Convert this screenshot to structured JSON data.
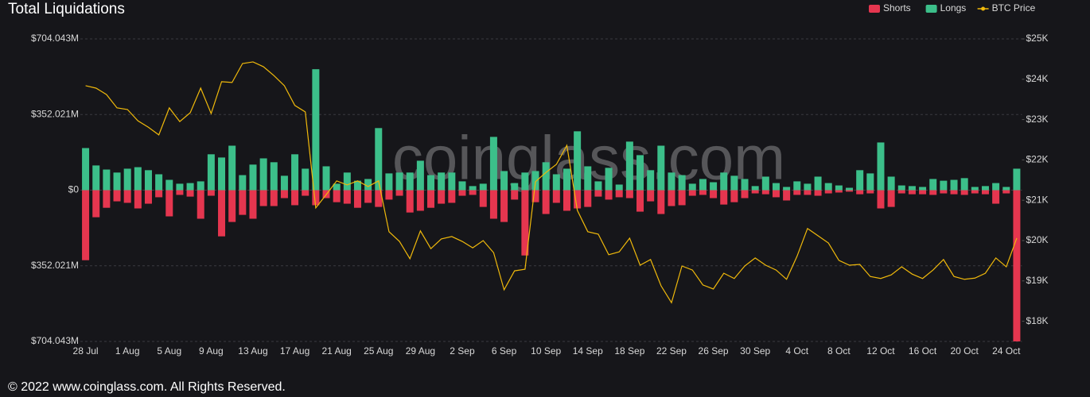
{
  "chart_data": {
    "type": "bar",
    "title": "Total Liquidations",
    "watermark": "coinglass.com",
    "footer": "© 2022 www.coinglass.com. All Rights Reserved.",
    "legend": "top-right",
    "grid": true,
    "categories": [
      "28 Jul",
      null,
      null,
      null,
      "1 Aug",
      null,
      null,
      null,
      "5 Aug",
      null,
      null,
      null,
      "9 Aug",
      null,
      null,
      null,
      "13 Aug",
      null,
      null,
      null,
      "17 Aug",
      null,
      null,
      null,
      "21 Aug",
      null,
      null,
      null,
      "25 Aug",
      null,
      null,
      null,
      "29 Aug",
      null,
      null,
      null,
      "2 Sep",
      null,
      null,
      null,
      "6 Sep",
      null,
      null,
      null,
      "10 Sep",
      null,
      null,
      null,
      "14 Sep",
      null,
      null,
      null,
      "18 Sep",
      null,
      null,
      null,
      "22 Sep",
      null,
      null,
      null,
      "26 Sep",
      null,
      null,
      null,
      "30 Sep",
      null,
      null,
      null,
      "4 Oct",
      null,
      null,
      null,
      "8 Oct",
      null,
      null,
      null,
      "12 Oct",
      null,
      null,
      null,
      "16 Oct",
      null,
      null,
      null,
      "20 Oct",
      null,
      null,
      null,
      "24 Oct",
      null
    ],
    "ylim": [
      -704.043,
      704.043
    ],
    "yticks": [
      {
        "value": 704.043,
        "label": "$704.043M"
      },
      {
        "value": 352.021,
        "label": "$352.021M"
      },
      {
        "value": 0,
        "label": "$0"
      },
      {
        "value": -352.021,
        "label": "$352.021M"
      },
      {
        "value": -704.043,
        "label": "$704.043M"
      }
    ],
    "y2lim": [
      17.5,
      25
    ],
    "y2ticks": [
      {
        "value": 18,
        "label": "$18K"
      },
      {
        "value": 19,
        "label": "$19K"
      },
      {
        "value": 20,
        "label": "$20K"
      },
      {
        "value": 21,
        "label": "$21K"
      },
      {
        "value": 22,
        "label": "$22K"
      },
      {
        "value": 23,
        "label": "$23K"
      },
      {
        "value": 24,
        "label": "$24K"
      },
      {
        "value": 25,
        "label": "$25K"
      }
    ],
    "series": [
      {
        "name": "Shorts",
        "color": "#e5364f",
        "values": [
          -326,
          -126,
          -82,
          -52,
          -59,
          -85,
          -63,
          -33,
          -122,
          -22,
          -30,
          -133,
          -26,
          -215,
          -148,
          -115,
          -133,
          -74,
          -74,
          -37,
          -70,
          -26,
          -70,
          -37,
          -56,
          -63,
          -82,
          -59,
          -78,
          -44,
          -26,
          -104,
          -96,
          -82,
          -63,
          -59,
          -26,
          -22,
          -78,
          -133,
          -148,
          -44,
          -304,
          -56,
          -111,
          -59,
          -96,
          -85,
          -78,
          -30,
          -44,
          -33,
          -37,
          -100,
          -52,
          -111,
          -74,
          -70,
          -26,
          -22,
          -37,
          -67,
          -56,
          -37,
          -15,
          -19,
          -33,
          -48,
          -22,
          -22,
          -26,
          -15,
          -11,
          -7,
          -19,
          -15,
          -85,
          -78,
          -15,
          -19,
          -19,
          -22,
          -15,
          -19,
          -22,
          -15,
          -19,
          -63,
          -15,
          -704
        ]
      },
      {
        "name": "Longs",
        "color": "#3cbf8a",
        "values": [
          196,
          115,
          96,
          82,
          100,
          107,
          93,
          74,
          48,
          30,
          33,
          41,
          167,
          152,
          207,
          70,
          119,
          148,
          130,
          67,
          167,
          100,
          563,
          111,
          30,
          82,
          44,
          52,
          289,
          78,
          82,
          82,
          137,
          70,
          82,
          82,
          41,
          19,
          30,
          248,
          89,
          33,
          82,
          89,
          130,
          74,
          100,
          274,
          111,
          41,
          104,
          26,
          226,
          163,
          93,
          207,
          82,
          70,
          30,
          52,
          37,
          82,
          67,
          52,
          19,
          63,
          33,
          15,
          41,
          30,
          63,
          33,
          22,
          11,
          93,
          78,
          222,
          63,
          22,
          19,
          15,
          52,
          44,
          48,
          56,
          15,
          19,
          33,
          15,
          100
        ]
      },
      {
        "name": "BTC Price",
        "color": "#f0b90b",
        "axis": "y2",
        "values": [
          23.84,
          23.78,
          23.62,
          23.29,
          23.25,
          22.97,
          22.81,
          22.62,
          23.29,
          22.95,
          23.17,
          23.78,
          23.15,
          23.94,
          23.92,
          24.39,
          24.43,
          24.31,
          24.09,
          23.84,
          23.35,
          23.19,
          20.81,
          21.14,
          21.48,
          21.38,
          21.48,
          21.34,
          21.48,
          20.22,
          19.98,
          19.55,
          20.24,
          19.8,
          20.04,
          20.1,
          19.98,
          19.82,
          20,
          19.7,
          18.78,
          19.25,
          19.29,
          21.46,
          21.69,
          21.89,
          22.36,
          20.75,
          20.22,
          20.16,
          19.65,
          19.72,
          20.06,
          19.39,
          19.53,
          18.88,
          18.46,
          19.37,
          19.27,
          18.9,
          18.8,
          19.19,
          19.06,
          19.37,
          19.57,
          19.39,
          19.27,
          19.04,
          19.61,
          20.3,
          20.12,
          19.94,
          19.51,
          19.39,
          19.41,
          19.11,
          19.06,
          19.15,
          19.35,
          19.17,
          19.06,
          19.27,
          19.53,
          19.11,
          19.04,
          19.07,
          19.19,
          19.57,
          19.35,
          20.06
        ]
      }
    ]
  }
}
